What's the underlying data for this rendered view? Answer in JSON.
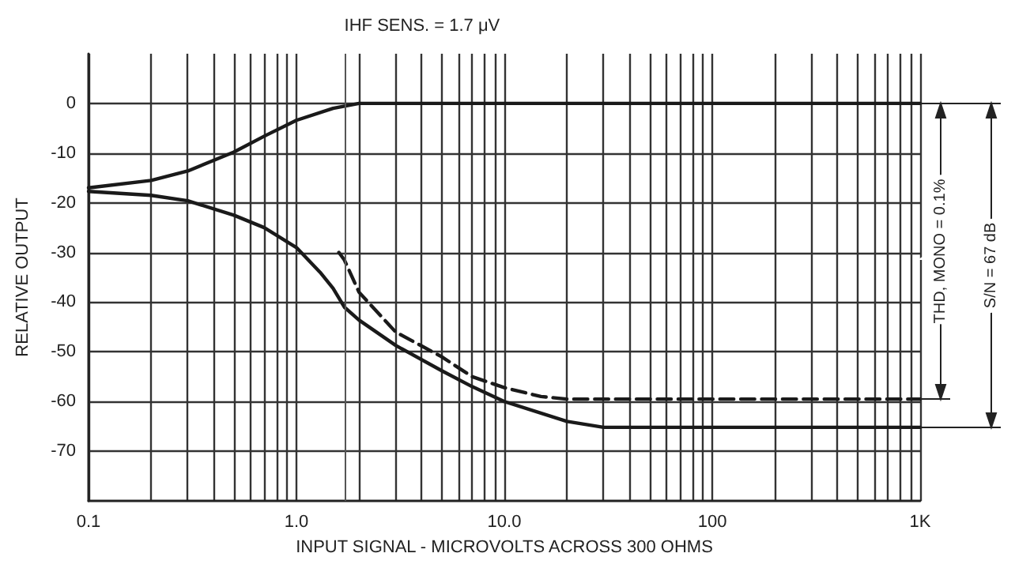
{
  "chart_data": {
    "type": "line",
    "xlabel": "INPUT SIGNAL - MICROVOLTS ACROSS 300 OHMS",
    "ylabel": "RELATIVE OUTPUT",
    "log": "x",
    "grid": true,
    "marker": "none",
    "xlim": [
      0.1,
      1000
    ],
    "ylim": [
      -80,
      10
    ],
    "xticks": [
      {
        "value": 0.1,
        "label": "0.1"
      },
      {
        "value": 0.2,
        "label": null
      },
      {
        "value": 0.3,
        "label": null
      },
      {
        "value": 0.4,
        "label": null
      },
      {
        "value": 0.5,
        "label": null
      },
      {
        "value": 0.6,
        "label": null
      },
      {
        "value": 0.7,
        "label": null
      },
      {
        "value": 0.8,
        "label": null
      },
      {
        "value": 0.9,
        "label": null
      },
      {
        "value": 1,
        "label": "1.0"
      },
      {
        "value": 2,
        "label": null
      },
      {
        "value": 3,
        "label": null
      },
      {
        "value": 4,
        "label": null
      },
      {
        "value": 5,
        "label": null
      },
      {
        "value": 6,
        "label": null
      },
      {
        "value": 7,
        "label": null
      },
      {
        "value": 8,
        "label": null
      },
      {
        "value": 9,
        "label": null
      },
      {
        "value": 10,
        "label": "10.0"
      },
      {
        "value": 20,
        "label": null
      },
      {
        "value": 30,
        "label": null
      },
      {
        "value": 40,
        "label": null
      },
      {
        "value": 50,
        "label": null
      },
      {
        "value": 60,
        "label": null
      },
      {
        "value": 70,
        "label": null
      },
      {
        "value": 80,
        "label": null
      },
      {
        "value": 90,
        "label": null
      },
      {
        "value": 100,
        "label": "100"
      },
      {
        "value": 200,
        "label": null
      },
      {
        "value": 300,
        "label": null
      },
      {
        "value": 400,
        "label": null
      },
      {
        "value": 500,
        "label": null
      },
      {
        "value": 600,
        "label": null
      },
      {
        "value": 700,
        "label": null
      },
      {
        "value": 800,
        "label": null
      },
      {
        "value": 900,
        "label": null
      },
      {
        "value": 1000,
        "label": "1K"
      }
    ],
    "yticks": [
      0,
      -10,
      -20,
      -30,
      -40,
      -50,
      -60,
      -70
    ],
    "series": [
      {
        "color": "#1a1a1a",
        "line_style": "solid",
        "x": [
          0.1,
          0.2,
          0.3,
          0.5,
          0.7,
          1,
          1.5,
          2,
          5,
          20,
          100,
          1000
        ],
        "values": [
          -17,
          -15.5,
          -13.6,
          -9.8,
          -6.6,
          -3.4,
          -1,
          0,
          0,
          0,
          0,
          0
        ]
      },
      {
        "color": "#1a1a1a",
        "line_style": "solid",
        "x": [
          0.1,
          0.2,
          0.3,
          0.5,
          0.7,
          1,
          1.3,
          1.5,
          1.7,
          2,
          3,
          5,
          7,
          10,
          20,
          30,
          50,
          100,
          1000
        ],
        "values": [
          -17.7,
          -18.5,
          -19.6,
          -22.5,
          -25,
          -29,
          -34,
          -37.2,
          -41,
          -43.6,
          -48.7,
          -53.8,
          -57,
          -60,
          -64,
          -65.2,
          -65.2,
          -65.2,
          -65.2
        ]
      },
      {
        "color": "#1a1a1a",
        "line_style": "dashed",
        "x": [
          1.6,
          1.7,
          2,
          3,
          5,
          7,
          10,
          15,
          20,
          50,
          100,
          1000
        ],
        "values": [
          -30,
          -31.5,
          -38,
          -46,
          -51,
          -55,
          -57.2,
          -59,
          -59.5,
          -59.5,
          -59.5,
          -59.5
        ]
      }
    ],
    "ref_lines": [
      {
        "axis": "x",
        "value": 1.7,
        "label": "IHF SENS. = 1.7 μV",
        "color": "#555555",
        "line_style": "solid"
      }
    ],
    "annotations": [
      "THD, MONO = 0.1%",
      "S/N = 67 dB"
    ]
  }
}
